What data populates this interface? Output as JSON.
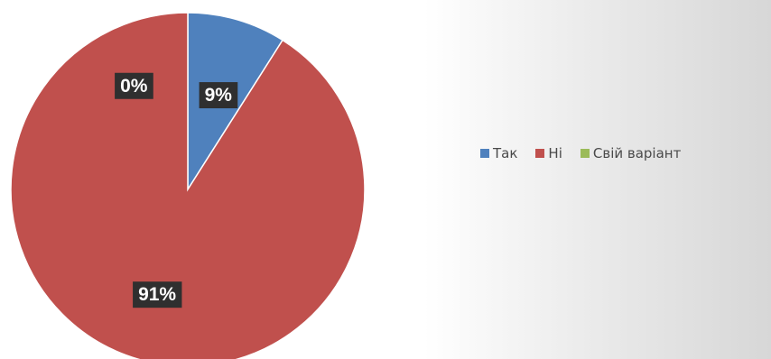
{
  "chart_data": {
    "type": "pie",
    "title": "",
    "slices": [
      {
        "label": "Так",
        "value": 9,
        "display": "9%",
        "color": "#4f81bd"
      },
      {
        "label": "Ні",
        "value": 91,
        "display": "91%",
        "color": "#c0504d"
      },
      {
        "label": "Свій варіант",
        "value": 0,
        "display": "0%",
        "color": "#9bbb59"
      }
    ],
    "legend_position": "right",
    "data_labels": true
  }
}
